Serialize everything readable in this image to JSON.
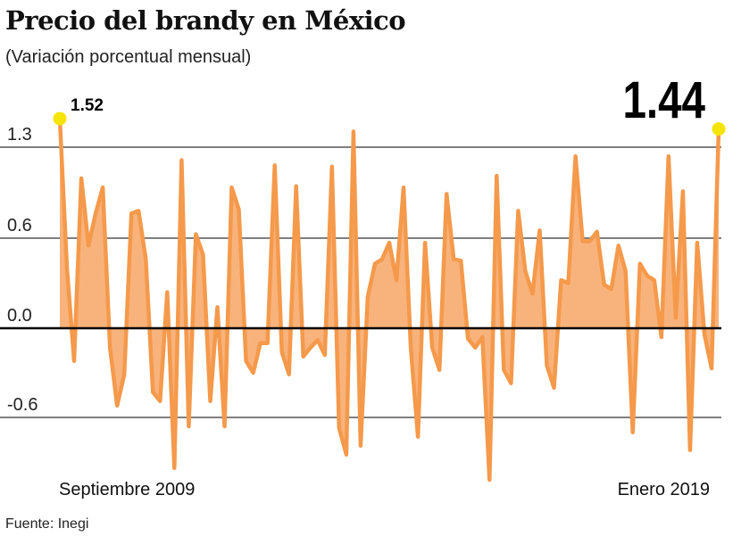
{
  "chart_data": {
    "type": "area",
    "title": "Precio del brandy en México",
    "subtitle": "(Variación porcentual mensual)",
    "source": "Fuente: Inegi",
    "x_start_label": "Septiembre  2009",
    "x_end_label": "Enero 2019",
    "yticks": [
      -0.6,
      0.0,
      0.6,
      1.3
    ],
    "ytick_labels": [
      "-0.6",
      "0.0",
      "0.6",
      "1.3"
    ],
    "grid": true,
    "annotations": [
      {
        "label": "1.52",
        "value": 1.52,
        "position": "first"
      },
      {
        "label": "1.44",
        "value": 1.44,
        "position": "last"
      }
    ],
    "colors": {
      "line": "#f5994b",
      "fill": "#f8b37c",
      "highlight": "#f5e400",
      "grid": "#555555",
      "zero": "#000000"
    },
    "values": [
      1.52,
      0.4,
      -0.22,
      1.06,
      0.55,
      0.79,
      0.99,
      -0.13,
      -0.52,
      -0.31,
      0.79,
      0.81,
      0.46,
      -0.43,
      -0.49,
      0.24,
      -0.94,
      1.2,
      -0.66,
      0.63,
      0.49,
      -0.49,
      0.14,
      -0.66,
      0.99,
      0.82,
      -0.22,
      -0.3,
      -0.1,
      -0.1,
      1.16,
      -0.16,
      -0.31,
      1.0,
      -0.19,
      -0.13,
      -0.08,
      -0.18,
      1.15,
      -0.67,
      -0.85,
      1.42,
      -0.79,
      0.21,
      0.43,
      0.46,
      0.57,
      0.32,
      0.99,
      -0.13,
      -0.73,
      0.57,
      -0.13,
      -0.28,
      0.94,
      0.46,
      0.45,
      -0.07,
      -0.13,
      -0.06,
      -1.02,
      1.08,
      -0.28,
      -0.37,
      0.81,
      0.38,
      0.23,
      0.66,
      -0.25,
      -0.4,
      0.32,
      0.3,
      1.23,
      0.58,
      0.58,
      0.65,
      0.29,
      0.26,
      0.55,
      0.38,
      -0.7,
      0.43,
      0.35,
      0.32,
      -0.06,
      1.23,
      0.07,
      0.96,
      -0.82,
      0.57,
      -0.04,
      -0.27,
      1.44
    ]
  }
}
